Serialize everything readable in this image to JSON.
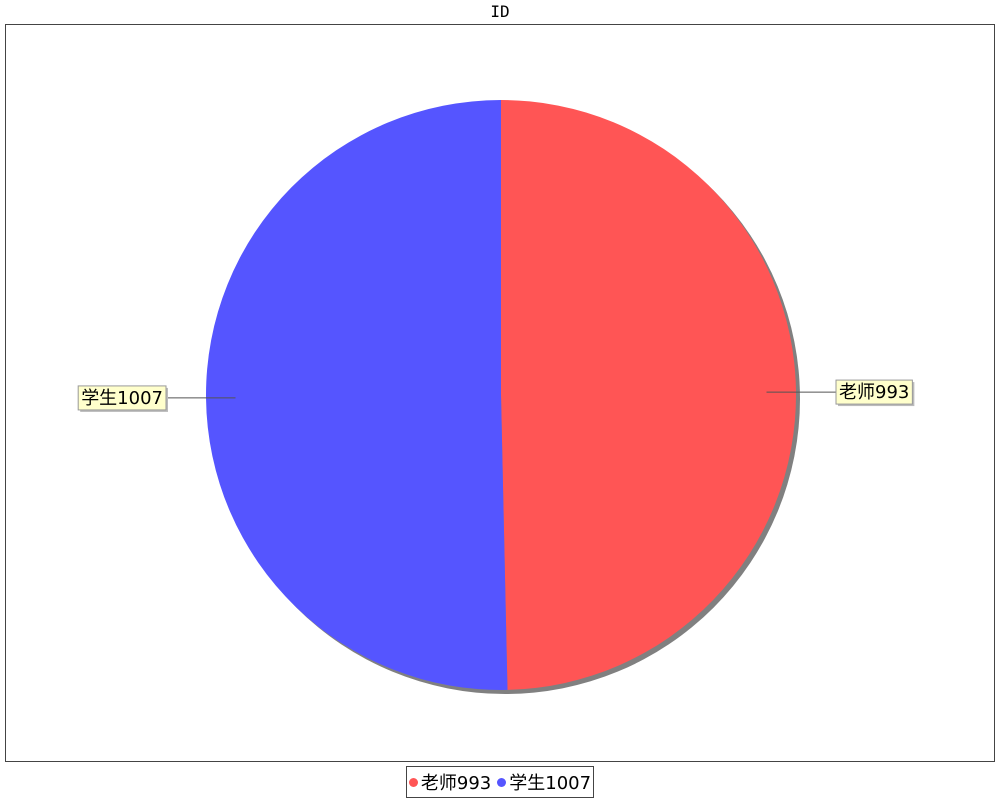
{
  "chart_data": {
    "type": "pie",
    "title": "ID",
    "slices": [
      {
        "label": "老师993",
        "category": "老师",
        "value": 993,
        "color": "#ff5555"
      },
      {
        "label": "学生1007",
        "category": "学生",
        "value": 1007,
        "color": "#5555ff"
      }
    ],
    "start_angle_deg": 90,
    "direction": "clockwise",
    "legend": {
      "position": "bottom",
      "items": [
        {
          "label": "老师993",
          "color": "#ff5555"
        },
        {
          "label": "学生1007",
          "color": "#5555ff"
        }
      ]
    }
  }
}
